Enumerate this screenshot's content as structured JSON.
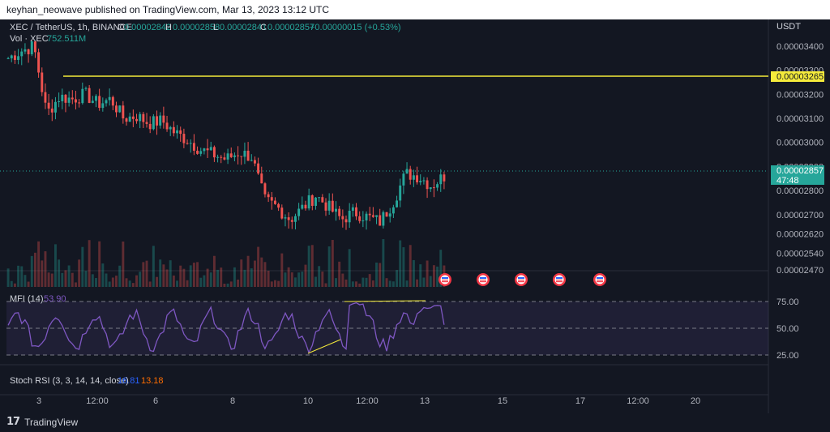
{
  "header": {
    "published": "keyhan_neowave published on TradingView.com, Mar 13, 2023 13:12 UTC"
  },
  "legend": {
    "symbol": "XEC / TetherUS, 1h, BINANCE",
    "o_label": "O",
    "o_val": "0.00002842",
    "h_label": "H",
    "h_val": "0.00002858",
    "l_label": "L",
    "l_val": "0.00002841",
    "c_label": "C",
    "c_val": "0.00002857",
    "chg": "+0.00000015 (+0.53%)",
    "vol_label": "Vol · XEC",
    "vol_val": "752.511M"
  },
  "price_axis": {
    "currency": "USDT",
    "ticks": [
      "0.00003400",
      "0.00003300",
      "0.00003200",
      "0.00003100",
      "0.00003000",
      "0.00002900",
      "0.00002800",
      "0.00002700",
      "0.00002620",
      "0.00002540",
      "0.00002470"
    ],
    "hline_label": "0.00003265",
    "last_price": "0.00002857",
    "countdown": "47:48"
  },
  "mfi": {
    "label": "MFI (14)",
    "value": "53.90",
    "ticks": [
      "75.00",
      "50.00",
      "25.00"
    ]
  },
  "stoch": {
    "label": "Stoch RSI (3, 3, 14, 14, close)",
    "k": "16.81",
    "d": "13.18"
  },
  "time_axis": [
    "3",
    "12:00",
    "6",
    "8",
    "10",
    "12:00",
    "13",
    "15",
    "17",
    "12:00",
    "20"
  ],
  "colors": {
    "bg": "#131722",
    "up": "#26a69a",
    "down": "#ef5350",
    "hline": "#f5eb3b",
    "mfi": "#7e57c2",
    "stoch_k": "#2962ff",
    "stoch_d": "#ff6d00"
  },
  "event_icons": [
    "us-flag-icon",
    "us-flag-icon",
    "us-flag-icon",
    "us-flag-icon",
    "us-flag-icon"
  ],
  "footer": {
    "brand": "TradingView"
  },
  "chart_data": {
    "type": "candlestick",
    "symbol": "XEC/USDT",
    "interval": "1h",
    "x": [
      "3",
      "12:00",
      "6",
      "8",
      "10",
      "12:00",
      "13"
    ],
    "close_path": [
      3.35e-05,
      3.38e-05,
      3.4e-05,
      3.12e-05,
      3.19e-05,
      3.18e-05,
      3.2e-05,
      3.16e-05,
      3.18e-05,
      3.1e-05,
      3.11e-05,
      3.08e-05,
      3.09e-05,
      3.04e-05,
      3.01e-05,
      2.97e-05,
      2.95e-05,
      2.93e-05,
      2.96e-05,
      2.94e-05,
      2.76e-05,
      2.73e-05,
      2.68e-05,
      2.73e-05,
      2.78e-05,
      2.73e-05,
      2.68e-05,
      2.71e-05,
      2.69e-05,
      2.67e-05,
      2.75e-05,
      2.87e-05,
      2.86e-05,
      2.82e-05,
      2.86e-05
    ],
    "horizontal_line": 3.265e-05,
    "last": 2.857e-05,
    "ylim": [
      2.44e-05,
      3.41e-05
    ],
    "mfi_last": 53.9,
    "mfi_levels": [
      80,
      50,
      20
    ],
    "stoch_k": 16.81,
    "stoch_d": 13.18
  }
}
